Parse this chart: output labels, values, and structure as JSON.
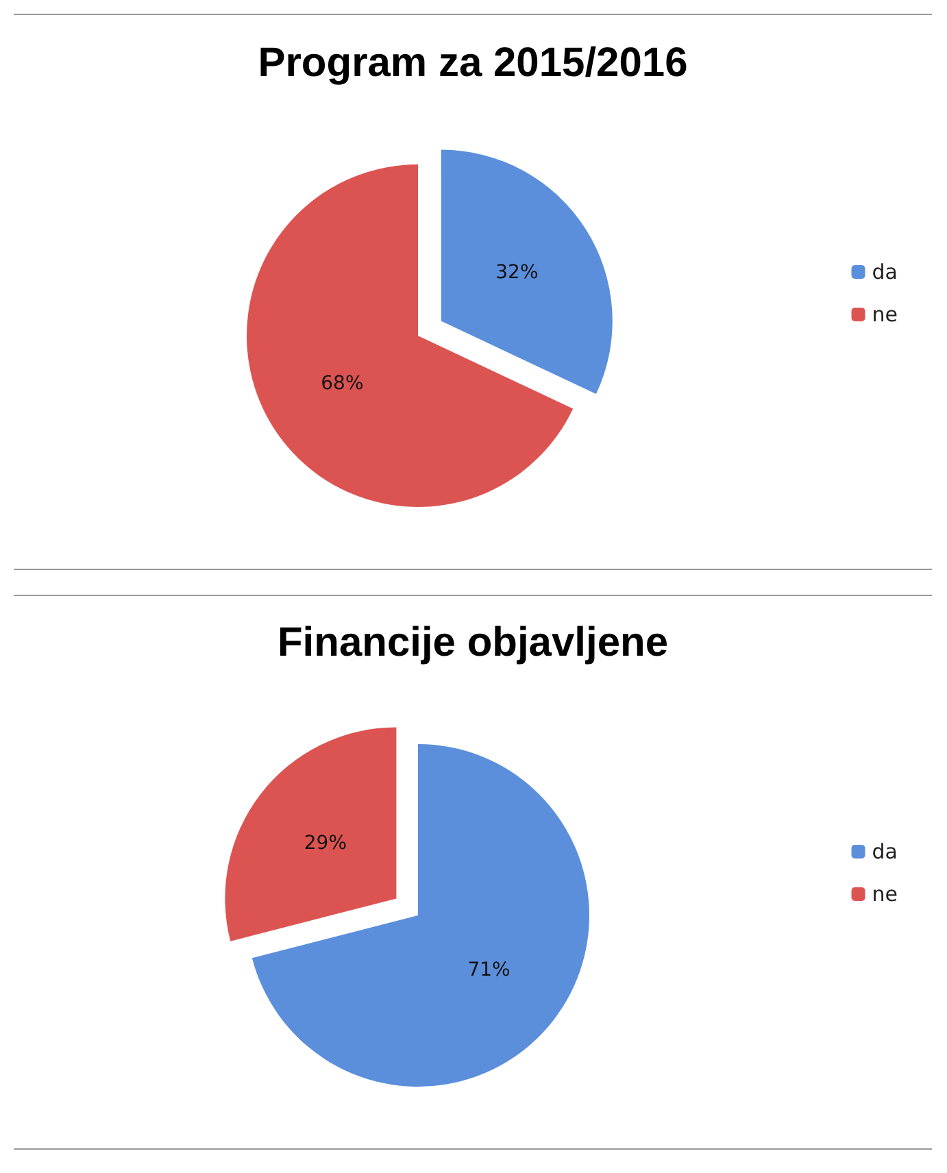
{
  "chart_data": [
    {
      "type": "pie",
      "title": "Program za 2015/2016",
      "categories": [
        "da",
        "ne"
      ],
      "values": [
        32,
        68
      ],
      "colors": [
        "#5b8fdc",
        "#dc5452"
      ],
      "value_labels": [
        "32%",
        "68%"
      ],
      "legend": "right"
    },
    {
      "type": "pie",
      "title": "Financije objavljene",
      "categories": [
        "da",
        "ne"
      ],
      "values": [
        71,
        29
      ],
      "colors": [
        "#5b8fdc",
        "#dc5452"
      ],
      "value_labels": [
        "71%",
        "29%"
      ],
      "legend": "right"
    }
  ]
}
